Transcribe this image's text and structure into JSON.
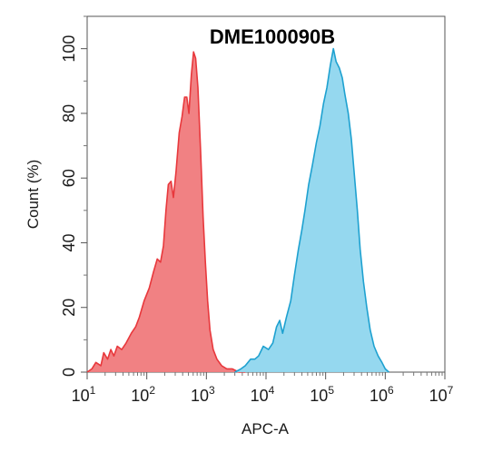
{
  "chart_data": {
    "type": "area",
    "title": "DME100090B",
    "xlabel": "APC-A",
    "ylabel": "Count (%)",
    "x_scale": "log10",
    "xlim": [
      10,
      10000000
    ],
    "ylim": [
      0,
      110
    ],
    "x_tick_bases": [
      "10",
      "10",
      "10",
      "10",
      "10",
      "10",
      "10"
    ],
    "x_tick_exponents": [
      "1",
      "2",
      "3",
      "4",
      "5",
      "6",
      "7"
    ],
    "y_ticks": [
      "0",
      "20",
      "40",
      "60",
      "80",
      "100"
    ],
    "grid": false,
    "series": [
      {
        "color": "#e8383c",
        "fill": "#f07a7c",
        "points": [
          [
            10,
            0
          ],
          [
            12,
            1
          ],
          [
            14,
            3
          ],
          [
            17,
            2
          ],
          [
            19,
            6
          ],
          [
            22,
            4
          ],
          [
            25,
            7
          ],
          [
            28,
            5
          ],
          [
            32,
            8
          ],
          [
            38,
            7
          ],
          [
            45,
            9
          ],
          [
            55,
            12
          ],
          [
            65,
            14
          ],
          [
            75,
            17
          ],
          [
            90,
            22
          ],
          [
            110,
            26
          ],
          [
            130,
            31
          ],
          [
            150,
            35
          ],
          [
            170,
            34
          ],
          [
            190,
            39
          ],
          [
            210,
            50
          ],
          [
            230,
            58
          ],
          [
            255,
            59
          ],
          [
            280,
            54
          ],
          [
            310,
            62
          ],
          [
            350,
            74
          ],
          [
            390,
            79
          ],
          [
            430,
            85
          ],
          [
            470,
            85
          ],
          [
            510,
            80
          ],
          [
            560,
            92
          ],
          [
            610,
            99
          ],
          [
            660,
            97
          ],
          [
            720,
            88
          ],
          [
            800,
            68
          ],
          [
            880,
            48
          ],
          [
            960,
            34
          ],
          [
            1050,
            22
          ],
          [
            1150,
            13
          ],
          [
            1300,
            7
          ],
          [
            1500,
            4
          ],
          [
            1800,
            2
          ],
          [
            2200,
            1
          ],
          [
            2700,
            1
          ],
          [
            3500,
            0
          ],
          [
            4500,
            0
          ]
        ]
      },
      {
        "color": "#1ea1d0",
        "fill": "#8fd6ee",
        "points": [
          [
            3000,
            0
          ],
          [
            3800,
            1
          ],
          [
            4500,
            2
          ],
          [
            5500,
            4
          ],
          [
            6500,
            4
          ],
          [
            7500,
            5
          ],
          [
            9000,
            8
          ],
          [
            11000,
            7
          ],
          [
            13000,
            9
          ],
          [
            15000,
            14
          ],
          [
            17000,
            16
          ],
          [
            19000,
            12
          ],
          [
            22000,
            17
          ],
          [
            26000,
            22
          ],
          [
            30000,
            30
          ],
          [
            35000,
            38
          ],
          [
            40000,
            44
          ],
          [
            45000,
            50
          ],
          [
            52000,
            58
          ],
          [
            60000,
            64
          ],
          [
            70000,
            71
          ],
          [
            80000,
            76
          ],
          [
            92000,
            83
          ],
          [
            105000,
            88
          ],
          [
            120000,
            95
          ],
          [
            135000,
            100
          ],
          [
            150000,
            96
          ],
          [
            170000,
            94
          ],
          [
            190000,
            91
          ],
          [
            210000,
            86
          ],
          [
            240000,
            80
          ],
          [
            270000,
            72
          ],
          [
            300000,
            62
          ],
          [
            340000,
            50
          ],
          [
            380000,
            38
          ],
          [
            430000,
            28
          ],
          [
            490000,
            20
          ],
          [
            560000,
            13
          ],
          [
            650000,
            8
          ],
          [
            760000,
            5
          ],
          [
            880000,
            3
          ],
          [
            1000000,
            1
          ],
          [
            1150000,
            0
          ]
        ]
      }
    ]
  }
}
